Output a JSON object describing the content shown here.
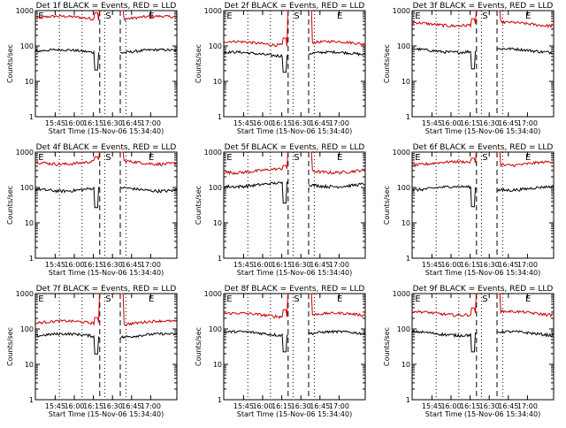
{
  "chart_data": {
    "type": "line",
    "xlabel": "Start Time (15-Nov-06 15:34:40)",
    "ylabel": "Counts/sec",
    "y_scale": "log",
    "ylim": [
      1,
      1000
    ],
    "y_ticks": [
      "1",
      "10",
      "100",
      "1000"
    ],
    "x_ticks": [
      "15:45",
      "16:00",
      "16:15",
      "16:30",
      "16:45",
      "17:00"
    ],
    "markers": [
      "E",
      "S",
      "E"
    ],
    "panels": [
      {
        "title": "Det 1f BLACK = Events, RED = LLD",
        "series": [
          {
            "name": "LLD",
            "color": "#cc0000",
            "level": 620
          },
          {
            "name": "Events",
            "color": "#000000",
            "level": 70
          }
        ]
      },
      {
        "title": "Det 2f BLACK = Events, RED = LLD",
        "series": [
          {
            "name": "LLD",
            "color": "#cc0000",
            "level": 120
          },
          {
            "name": "Events",
            "color": "#000000",
            "level": 60
          }
        ]
      },
      {
        "title": "Det 3f BLACK = Events, RED = LLD",
        "series": [
          {
            "name": "LLD",
            "color": "#cc0000",
            "level": 420
          },
          {
            "name": "Events",
            "color": "#000000",
            "level": 75
          }
        ]
      },
      {
        "title": "Det 4f BLACK = Events, RED = LLD",
        "series": [
          {
            "name": "LLD",
            "color": "#cc0000",
            "level": 520
          },
          {
            "name": "Events",
            "color": "#000000",
            "level": 90
          }
        ]
      },
      {
        "title": "Det 5f BLACK = Events, RED = LLD",
        "series": [
          {
            "name": "LLD",
            "color": "#cc0000",
            "level": 300
          },
          {
            "name": "Events",
            "color": "#000000",
            "level": 120
          }
        ]
      },
      {
        "title": "Det 6f BLACK = Events, RED = LLD",
        "series": [
          {
            "name": "LLD",
            "color": "#cc0000",
            "level": 480
          },
          {
            "name": "Events",
            "color": "#000000",
            "level": 95
          }
        ]
      },
      {
        "title": "Det 7f BLACK = Events, RED = LLD",
        "series": [
          {
            "name": "LLD",
            "color": "#cc0000",
            "level": 150
          },
          {
            "name": "Events",
            "color": "#000000",
            "level": 65
          }
        ]
      },
      {
        "title": "Det 8f BLACK = Events, RED = LLD",
        "series": [
          {
            "name": "LLD",
            "color": "#cc0000",
            "level": 250
          },
          {
            "name": "Events",
            "color": "#000000",
            "level": 75
          }
        ]
      },
      {
        "title": "Det 9f BLACK = Events, RED = LLD",
        "series": [
          {
            "name": "LLD",
            "color": "#cc0000",
            "level": 280
          },
          {
            "name": "Events",
            "color": "#000000",
            "level": 75
          }
        ]
      }
    ]
  }
}
